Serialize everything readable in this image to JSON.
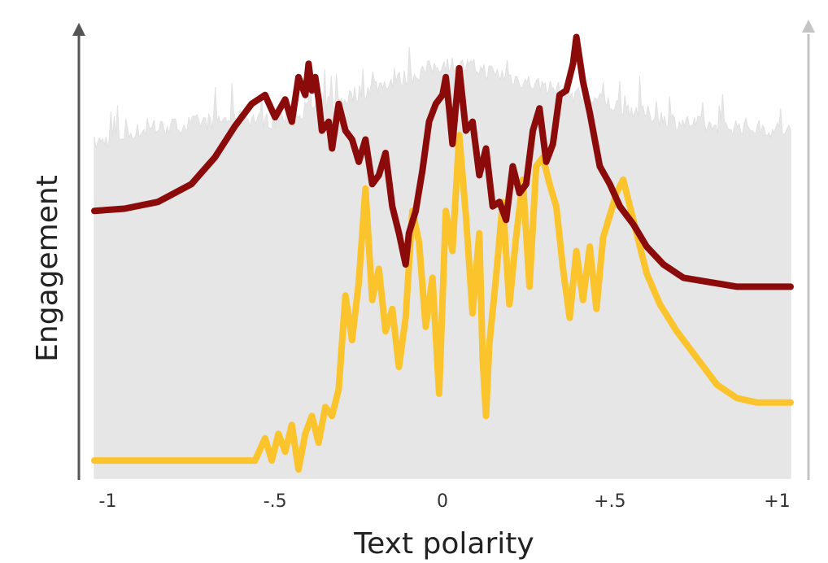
{
  "chart_data": {
    "type": "line",
    "title": "",
    "xlabel": "Text polarity",
    "ylabel": "Engagement",
    "xlim": [
      -1.04,
      1.04
    ],
    "ylim": [
      0,
      1
    ],
    "x_ticks": [
      {
        "value": -1,
        "label": "-1"
      },
      {
        "value": -0.5,
        "label": "-.5"
      },
      {
        "value": 0,
        "label": "0"
      },
      {
        "value": 0.5,
        "label": "+.5"
      },
      {
        "value": 1,
        "label": "+1"
      }
    ],
    "grid": false,
    "legend": "none",
    "y_tick_labels": false,
    "background_distribution": {
      "style": "area",
      "color": "#e6e6e6",
      "x": [
        -1.04,
        -1.0,
        -0.9,
        -0.8,
        -0.7,
        -0.6,
        -0.5,
        -0.4,
        -0.3,
        -0.2,
        -0.1,
        0.0,
        0.1,
        0.2,
        0.3,
        0.4,
        0.5,
        0.6,
        0.7,
        0.8,
        0.9,
        1.0,
        1.04
      ],
      "y": [
        0.75,
        0.76,
        0.78,
        0.79,
        0.8,
        0.81,
        0.8,
        0.83,
        0.85,
        0.88,
        0.9,
        0.93,
        0.92,
        0.9,
        0.88,
        0.86,
        0.84,
        0.82,
        0.8,
        0.79,
        0.79,
        0.78,
        0.78
      ]
    },
    "series": [
      {
        "color": "#8b0a0a",
        "x": [
          -1.04,
          -0.95,
          -0.85,
          -0.75,
          -0.68,
          -0.62,
          -0.57,
          -0.53,
          -0.5,
          -0.47,
          -0.45,
          -0.43,
          -0.41,
          -0.4,
          -0.39,
          -0.38,
          -0.37,
          -0.36,
          -0.34,
          -0.33,
          -0.31,
          -0.29,
          -0.27,
          -0.25,
          -0.23,
          -0.21,
          -0.19,
          -0.17,
          -0.15,
          -0.13,
          -0.11,
          -0.1,
          -0.08,
          -0.06,
          -0.04,
          -0.02,
          0.0,
          0.01,
          0.02,
          0.03,
          0.05,
          0.07,
          0.09,
          0.11,
          0.13,
          0.15,
          0.17,
          0.19,
          0.21,
          0.23,
          0.25,
          0.27,
          0.29,
          0.31,
          0.33,
          0.35,
          0.37,
          0.39,
          0.4,
          0.42,
          0.44,
          0.47,
          0.5,
          0.53,
          0.57,
          0.61,
          0.66,
          0.72,
          0.8,
          0.88,
          0.96,
          1.04
        ],
        "y": [
          0.6,
          0.605,
          0.62,
          0.66,
          0.72,
          0.79,
          0.84,
          0.86,
          0.81,
          0.85,
          0.8,
          0.9,
          0.86,
          0.93,
          0.87,
          0.9,
          0.85,
          0.78,
          0.8,
          0.74,
          0.84,
          0.78,
          0.76,
          0.71,
          0.76,
          0.66,
          0.68,
          0.73,
          0.61,
          0.55,
          0.48,
          0.55,
          0.6,
          0.69,
          0.8,
          0.84,
          0.86,
          0.9,
          0.83,
          0.75,
          0.92,
          0.78,
          0.8,
          0.68,
          0.74,
          0.61,
          0.62,
          0.58,
          0.7,
          0.64,
          0.66,
          0.78,
          0.83,
          0.71,
          0.75,
          0.86,
          0.87,
          0.93,
          0.99,
          0.89,
          0.82,
          0.7,
          0.66,
          0.61,
          0.57,
          0.52,
          0.48,
          0.45,
          0.44,
          0.43,
          0.43,
          0.43
        ]
      },
      {
        "color": "#fbc32c",
        "x": [
          -1.04,
          -0.9,
          -0.7,
          -0.56,
          -0.53,
          -0.51,
          -0.49,
          -0.47,
          -0.45,
          -0.43,
          -0.41,
          -0.39,
          -0.37,
          -0.35,
          -0.33,
          -0.31,
          -0.29,
          -0.27,
          -0.25,
          -0.23,
          -0.21,
          -0.19,
          -0.17,
          -0.15,
          -0.13,
          -0.11,
          -0.09,
          -0.07,
          -0.05,
          -0.03,
          -0.01,
          0.01,
          0.03,
          0.05,
          0.07,
          0.09,
          0.11,
          0.12,
          0.13,
          0.14,
          0.16,
          0.18,
          0.2,
          0.22,
          0.24,
          0.26,
          0.28,
          0.3,
          0.32,
          0.34,
          0.36,
          0.38,
          0.4,
          0.42,
          0.44,
          0.46,
          0.48,
          0.5,
          0.52,
          0.54,
          0.56,
          0.58,
          0.61,
          0.65,
          0.7,
          0.76,
          0.82,
          0.88,
          0.94,
          1.04
        ],
        "y": [
          0.04,
          0.04,
          0.04,
          0.04,
          0.09,
          0.04,
          0.1,
          0.06,
          0.12,
          0.02,
          0.1,
          0.14,
          0.08,
          0.16,
          0.14,
          0.2,
          0.41,
          0.31,
          0.44,
          0.65,
          0.4,
          0.47,
          0.33,
          0.38,
          0.25,
          0.36,
          0.6,
          0.53,
          0.34,
          0.45,
          0.19,
          0.6,
          0.51,
          0.77,
          0.59,
          0.37,
          0.55,
          0.27,
          0.14,
          0.3,
          0.45,
          0.62,
          0.39,
          0.54,
          0.67,
          0.43,
          0.7,
          0.72,
          0.66,
          0.61,
          0.47,
          0.36,
          0.51,
          0.4,
          0.52,
          0.38,
          0.54,
          0.59,
          0.64,
          0.67,
          0.61,
          0.55,
          0.46,
          0.39,
          0.33,
          0.27,
          0.21,
          0.18,
          0.17,
          0.17
        ]
      }
    ]
  }
}
